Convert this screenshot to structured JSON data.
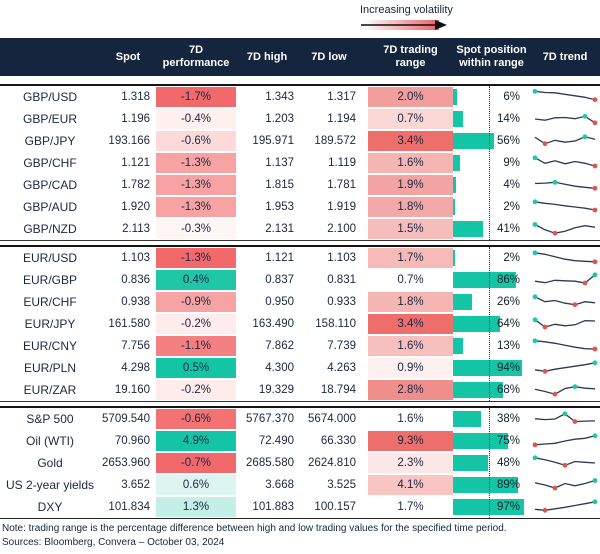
{
  "volatility_legend": {
    "label": "Increasing volatility"
  },
  "colors": {
    "header_navy": "#15253E",
    "teal": "#14C6A5",
    "red": "#F2696C",
    "spark_line": "#2A3A52",
    "spark_high_dot": "#1FC7A8",
    "spark_low_dot": "#E2544B"
  },
  "chart_data": {
    "type": "table",
    "columns": [
      "",
      "Spot",
      "7D performance",
      "7D high",
      "7D low",
      "7D trading range",
      "Spot position within range",
      "7D trend"
    ],
    "legend": {
      "midline_pct": 50,
      "heatmap": "red intensity = higher volatility / more negative performance, teal = positive performance"
    },
    "blocks": [
      {
        "name": "gbp-pairs",
        "rows": [
          {
            "label": "GBP/USD",
            "spot": "1.318",
            "perf": "-1.7%",
            "perf_bg": "#F2696C",
            "high": "1.343",
            "low": "1.317",
            "range": "2.0%",
            "range_bg": "#F29E9D",
            "position_pct": 6,
            "position_label": "6%",
            "spark": [
              88,
              80,
              78,
              68,
              58,
              48,
              32
            ],
            "spark_high_idx": 0,
            "spark_low_idx": 6
          },
          {
            "label": "GBP/EUR",
            "spot": "1.196",
            "perf": "-0.4%",
            "perf_bg": "#FDF0EF",
            "high": "1.203",
            "low": "1.194",
            "range": "0.7%",
            "range_bg": "#FBD8D6",
            "position_pct": 14,
            "position_label": "14%",
            "spark": [
              50,
              42,
              58,
              60,
              52,
              68,
              25
            ],
            "spark_high_idx": 5,
            "spark_low_idx": 6
          },
          {
            "label": "GBP/JPY",
            "spot": "193.166",
            "perf": "-0.6%",
            "perf_bg": "#FBDAD9",
            "high": "195.971",
            "low": "189.572",
            "range": "3.4%",
            "range_bg": "#EE6E6B",
            "position_pct": 56,
            "position_label": "56%",
            "spark": [
              75,
              32,
              55,
              42,
              50,
              78,
              62
            ],
            "spark_high_idx": 5,
            "spark_low_idx": 1
          },
          {
            "label": "GBP/CHF",
            "spot": "1.121",
            "perf": "-1.3%",
            "perf_bg": "#F7A3A3",
            "high": "1.137",
            "low": "1.119",
            "range": "1.6%",
            "range_bg": "#F5B5B3",
            "position_pct": 9,
            "position_label": "9%",
            "spark": [
              85,
              48,
              65,
              45,
              60,
              48,
              30
            ],
            "spark_high_idx": 0,
            "spark_low_idx": 6
          },
          {
            "label": "GBP/CAD",
            "spot": "1.782",
            "perf": "-1.3%",
            "perf_bg": "#F7A3A3",
            "high": "1.815",
            "low": "1.781",
            "range": "1.9%",
            "range_bg": "#F2A3A2",
            "position_pct": 4,
            "position_label": "4%",
            "spark": [
              60,
              63,
              68,
              55,
              42,
              35,
              28
            ],
            "spark_high_idx": 2,
            "spark_low_idx": 6
          },
          {
            "label": "GBP/AUD",
            "spot": "1.920",
            "perf": "-1.3%",
            "perf_bg": "#F7A3A3",
            "high": "1.953",
            "low": "1.919",
            "range": "1.8%",
            "range_bg": "#F3A9A8",
            "position_pct": 2,
            "position_label": "2%",
            "spark": [
              85,
              75,
              67,
              58,
              50,
              42,
              30
            ],
            "spark_high_idx": 0,
            "spark_low_idx": 6
          },
          {
            "label": "GBP/NZD",
            "spot": "2.113",
            "perf": "-0.3%",
            "perf_bg": "#FEF6F5",
            "high": "2.131",
            "low": "2.100",
            "range": "1.5%",
            "range_bg": "#F6BDBB",
            "position_pct": 41,
            "position_label": "41%",
            "spark": [
              80,
              45,
              22,
              35,
              58,
              72,
              62
            ],
            "spark_high_idx": 0,
            "spark_low_idx": 2
          }
        ]
      },
      {
        "name": "eur-pairs",
        "rows": [
          {
            "label": "EUR/USD",
            "spot": "1.103",
            "perf": "-1.3%",
            "perf_bg": "#F2696C",
            "high": "1.121",
            "low": "1.103",
            "range": "1.7%",
            "range_bg": "#F6BBB9",
            "position_pct": 2,
            "position_label": "2%",
            "spark": [
              85,
              75,
              58,
              42,
              32,
              28,
              25
            ],
            "spark_high_idx": 0,
            "spark_low_idx": 6
          },
          {
            "label": "EUR/GBP",
            "spot": "0.836",
            "perf": "0.4%",
            "perf_bg": "#1FC7A7",
            "high": "0.837",
            "low": "0.831",
            "range": "0.7%",
            "range_bg": "#FFFFFF",
            "position_pct": 86,
            "position_label": "86%",
            "spark": [
              42,
              32,
              48,
              45,
              42,
              30,
              85
            ],
            "spark_high_idx": 6,
            "spark_low_idx": 5
          },
          {
            "label": "EUR/CHF",
            "spot": "0.938",
            "perf": "-0.9%",
            "perf_bg": "#F7A3A3",
            "high": "0.950",
            "low": "0.933",
            "range": "1.8%",
            "range_bg": "#F5B5B3",
            "position_pct": 26,
            "position_label": "26%",
            "spark": [
              85,
              52,
              60,
              42,
              32,
              52,
              45
            ],
            "spark_high_idx": 0,
            "spark_low_idx": 4
          },
          {
            "label": "EUR/JPY",
            "spot": "161.580",
            "perf": "-0.2%",
            "perf_bg": "#FDECEB",
            "high": "163.490",
            "low": "158.110",
            "range": "3.4%",
            "range_bg": "#EE6E6B",
            "position_pct": 64,
            "position_label": "64%",
            "spark": [
              78,
              30,
              48,
              38,
              45,
              72,
              70
            ],
            "spark_high_idx": 0,
            "spark_low_idx": 1
          },
          {
            "label": "EUR/CNY",
            "spot": "7.756",
            "perf": "-1.1%",
            "perf_bg": "#F48082",
            "high": "7.862",
            "low": "7.739",
            "range": "1.6%",
            "range_bg": "#F7C0BE",
            "position_pct": 13,
            "position_label": "13%",
            "spark": [
              85,
              78,
              68,
              55,
              42,
              32,
              30
            ],
            "spark_high_idx": 0,
            "spark_low_idx": 6
          },
          {
            "label": "EUR/PLN",
            "spot": "4.298",
            "perf": "0.5%",
            "perf_bg": "#13C5A4",
            "high": "4.300",
            "low": "4.263",
            "range": "0.9%",
            "range_bg": "#FDF0EF",
            "position_pct": 94,
            "position_label": "94%",
            "spark": [
              38,
              28,
              42,
              52,
              62,
              72,
              85
            ],
            "spark_high_idx": 6,
            "spark_low_idx": 1
          },
          {
            "label": "EUR/ZAR",
            "spot": "19.160",
            "perf": "-0.2%",
            "perf_bg": "#FDECEB",
            "high": "19.329",
            "low": "18.794",
            "range": "2.8%",
            "range_bg": "#F08E8C",
            "position_pct": 68,
            "position_label": "68%",
            "spark": [
              55,
              40,
              22,
              60,
              72,
              62,
              58
            ],
            "spark_high_idx": 4,
            "spark_low_idx": 2
          }
        ]
      },
      {
        "name": "macro-assets",
        "rows": [
          {
            "label": "S&P 500",
            "spot": "5709.540",
            "perf": "-0.6%",
            "perf_bg": "#F37374",
            "high": "5767.370",
            "low": "5674.000",
            "range": "1.6%",
            "range_bg": "#FFFFFF",
            "position_pct": 38,
            "position_label": "38%",
            "spark": [
              52,
              46,
              50,
              85,
              33,
              36,
              37
            ],
            "spark_high_idx": 3,
            "spark_low_idx": 4
          },
          {
            "label": "Oil (WTI)",
            "spot": "70.960",
            "perf": "4.9%",
            "perf_bg": "#13C5A4",
            "high": "72.490",
            "low": "66.330",
            "range": "9.3%",
            "range_bg": "#EE6E6B",
            "position_pct": 75,
            "position_label": "75%",
            "spark": [
              25,
              30,
              35,
              50,
              62,
              68,
              85
            ],
            "spark_high_idx": 6,
            "spark_low_idx": 0
          },
          {
            "label": "Gold",
            "spot": "2653.960",
            "perf": "-0.7%",
            "perf_bg": "#F2696C",
            "high": "2685.580",
            "low": "2624.810",
            "range": "2.3%",
            "range_bg": "#FCE7E6",
            "position_pct": 48,
            "position_label": "48%",
            "spark": [
              85,
              72,
              55,
              35,
              60,
              55,
              50
            ],
            "spark_high_idx": 0,
            "spark_low_idx": 3
          },
          {
            "label": "US 2-year yields",
            "spot": "3.652",
            "perf": "0.6%",
            "perf_bg": "#DDF5F0",
            "high": "3.668",
            "low": "3.525",
            "range": "4.1%",
            "range_bg": "#F8C5C3",
            "position_pct": 89,
            "position_label": "89%",
            "spark": [
              65,
              50,
              30,
              60,
              45,
              60,
              80
            ],
            "spark_high_idx": 6,
            "spark_low_idx": 2
          },
          {
            "label": "DXY",
            "spot": "101.834",
            "perf": "1.3%",
            "perf_bg": "#C3EFE7",
            "high": "101.883",
            "low": "100.157",
            "range": "1.7%",
            "range_bg": "#FFFFFF",
            "position_pct": 97,
            "position_label": "97%",
            "spark": [
              35,
              28,
              38,
              48,
              60,
              72,
              85
            ],
            "spark_high_idx": 6,
            "spark_low_idx": 1
          }
        ]
      }
    ]
  },
  "footer": {
    "note": "Note: trading range is the percentage difference between high and low trading values for the specified time period.",
    "sources": "Sources: Bloomberg, Convera – October 03, 2024"
  }
}
